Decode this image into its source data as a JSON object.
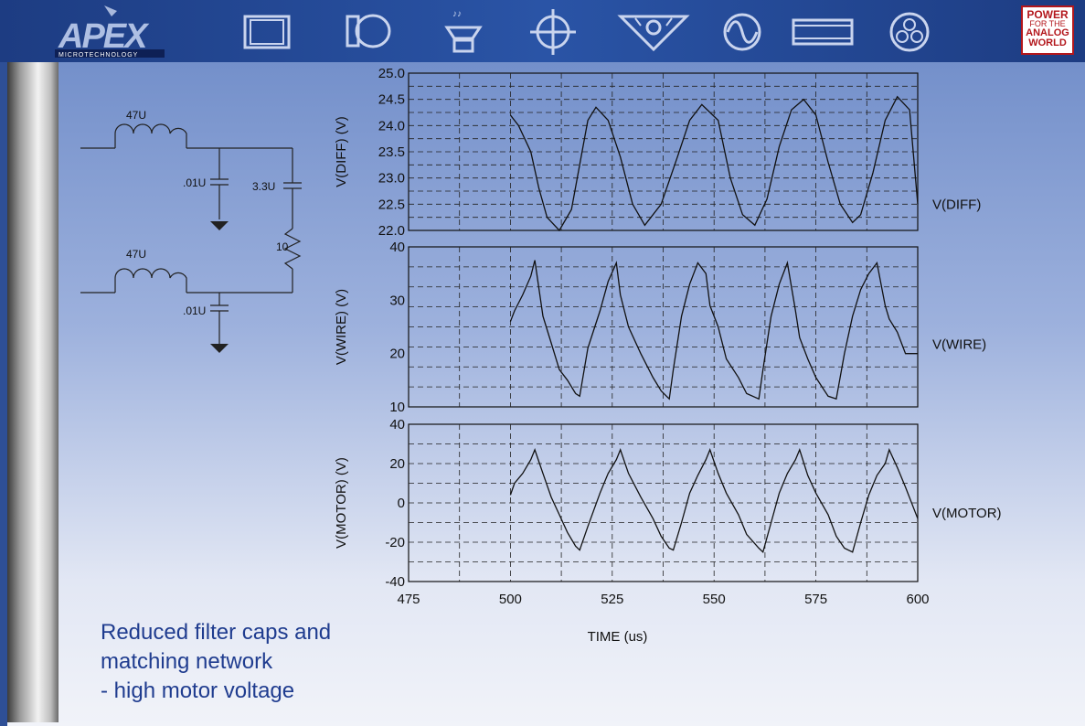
{
  "header": {
    "logo": "APEX",
    "logo_sub": "MICROTECHNOLOGY",
    "badge": [
      "POWER",
      "FOR THE",
      "ANALOG",
      "WORLD"
    ],
    "icons": [
      "rectangle-frame-icon",
      "motor-icon",
      "speaker-icon",
      "target-icon",
      "sun-triangle-icon",
      "sine-wave-icon",
      "wide-rectangle-icon",
      "coil-icon"
    ]
  },
  "schematic": {
    "inductor1": "47U",
    "inductor2": "47U",
    "cap1": ".01U",
    "cap2": "3.3U",
    "cap3": ".01U",
    "resistor": "10"
  },
  "caption": {
    "line1": "Reduced filter caps and",
    "line2": "matching network",
    "line3": "- high motor voltage"
  },
  "chart_data": [
    {
      "type": "line",
      "ylabel": "V(DIFF)  (V)",
      "series": [
        {
          "name": "V(DIFF)",
          "x": [
            500,
            502,
            505,
            507,
            509,
            512,
            515,
            519,
            521,
            524,
            527,
            530,
            533,
            537,
            541,
            544,
            547,
            551,
            554,
            557,
            560,
            563,
            566,
            569,
            572,
            575,
            578,
            581,
            584,
            586,
            589,
            592,
            595,
            598,
            600
          ],
          "y": [
            24.2,
            24.0,
            23.5,
            22.8,
            22.25,
            22.0,
            22.4,
            24.1,
            24.35,
            24.1,
            23.4,
            22.5,
            22.1,
            22.5,
            23.4,
            24.1,
            24.4,
            24.1,
            23.0,
            22.3,
            22.1,
            22.6,
            23.6,
            24.3,
            24.5,
            24.2,
            23.3,
            22.5,
            22.15,
            22.3,
            23.1,
            24.1,
            24.55,
            24.3,
            22.5
          ]
        }
      ],
      "xlim": [
        475,
        600
      ],
      "ylim": [
        22.0,
        25.0
      ],
      "yticks": [
        "25.0",
        "24.5",
        "24.0",
        "23.5",
        "23.0",
        "22.5",
        "22.0"
      ],
      "grid": true
    },
    {
      "type": "line",
      "ylabel": "V(WIRE)  (V)",
      "series": [
        {
          "name": "V(WIRE)",
          "x": [
            500,
            501,
            503,
            505,
            506,
            508,
            510,
            512,
            514,
            516,
            517,
            519,
            522,
            524,
            526,
            527,
            529,
            532,
            535,
            537,
            539,
            540,
            542,
            544,
            546,
            548,
            549,
            551,
            553,
            556,
            558,
            561,
            562,
            564,
            566,
            568,
            570,
            571,
            573,
            575,
            578,
            580,
            582,
            584,
            586,
            588,
            590,
            592,
            593,
            595,
            597,
            600
          ],
          "y": [
            26,
            28,
            31,
            34.5,
            37.5,
            27,
            22,
            17,
            15,
            12.5,
            12,
            21,
            28,
            33.5,
            37,
            31,
            25,
            20,
            15.5,
            13,
            11.5,
            17,
            27,
            33,
            37,
            35,
            29,
            25,
            19,
            15.5,
            12.5,
            11.5,
            17,
            27,
            33,
            37,
            28,
            23,
            19,
            15.5,
            12,
            11.5,
            20,
            27,
            32,
            35,
            37,
            29,
            26.5,
            24,
            20,
            20
          ]
        }
      ],
      "xlim": [
        475,
        600
      ],
      "ylim": [
        10,
        40
      ],
      "yticks": [
        "40",
        "30",
        "20",
        "10"
      ],
      "grid": true
    },
    {
      "type": "line",
      "ylabel": "V(MOTOR)  (V)",
      "series": [
        {
          "name": "V(MOTOR)",
          "x": [
            500,
            501,
            503,
            505,
            506,
            508,
            510,
            512,
            514,
            516,
            517,
            519,
            522,
            524,
            526,
            527,
            529,
            532,
            535,
            537,
            539,
            540,
            542,
            544,
            546,
            548,
            549,
            551,
            553,
            556,
            558,
            561,
            562,
            564,
            566,
            568,
            570,
            571,
            573,
            575,
            578,
            580,
            582,
            584,
            586,
            588,
            590,
            592,
            593,
            595,
            597,
            600
          ],
          "y": [
            4,
            10,
            15,
            22,
            27,
            15,
            3,
            -6,
            -15,
            -22,
            -24,
            -12,
            5,
            15,
            22,
            27,
            15,
            3,
            -8,
            -17,
            -23,
            -24,
            -10,
            5,
            14,
            22,
            27,
            15,
            5,
            -6,
            -16,
            -23,
            -25,
            -10,
            5,
            15,
            22,
            27,
            14,
            5,
            -6,
            -17,
            -23,
            -25,
            -10,
            4,
            14,
            20,
            27,
            18,
            8,
            -8
          ]
        }
      ],
      "xlim": [
        475,
        600
      ],
      "ylim": [
        -40,
        40
      ],
      "yticks": [
        "40",
        "20",
        "0",
        "-20",
        "-40"
      ],
      "xticks": [
        "475",
        "500",
        "525",
        "550",
        "575",
        "600"
      ],
      "xlabel": "TIME  (us)",
      "grid": true
    }
  ]
}
